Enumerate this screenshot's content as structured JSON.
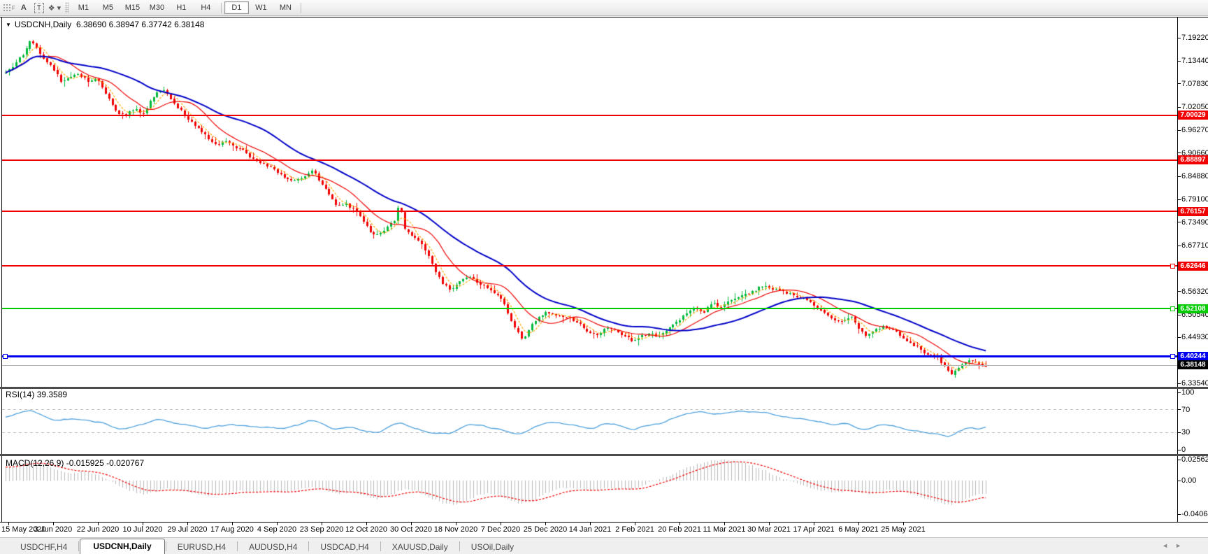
{
  "colors": {
    "bull": "#00b93c",
    "bear": "#f20000",
    "ma_fast": "#ffaa00",
    "ma_mid": "#f00000",
    "ma_slow": "#0000c8",
    "rsi_line": "#4da0dc",
    "macd_hist": "#b8b8b8",
    "macd_signal": "#f00000",
    "level_red": "#f00000",
    "level_green": "#00cc00",
    "level_blue": "#0000f0",
    "current_line": "#b4b4b4",
    "current_badge": "#000000"
  },
  "icons": {
    "grip_f": "F",
    "font": "A",
    "label_box": "T",
    "shapes": "❖",
    "caret_down": "▾",
    "title_caret": "▼",
    "tab_prev": "◄",
    "tab_next": "►"
  },
  "toolbar": {
    "timeframes": [
      {
        "label": "M1"
      },
      {
        "label": "M5"
      },
      {
        "label": "M15"
      },
      {
        "label": "M30"
      },
      {
        "label": "H1"
      },
      {
        "label": "H4"
      },
      {
        "label": "D1",
        "active": true
      },
      {
        "label": "W1"
      },
      {
        "label": "MN"
      }
    ]
  },
  "chart_window": {
    "title": "USDCNH,Daily",
    "ohlc": "6.38690 6.38947 6.37742 6.38148"
  },
  "price_axis": {
    "ticks": [
      {
        "label": "7.19220",
        "value": 7.1922
      },
      {
        "label": "7.13440",
        "value": 7.1344
      },
      {
        "label": "7.07830",
        "value": 7.0783
      },
      {
        "label": "7.02050",
        "value": 7.0205
      },
      {
        "label": "6.96270",
        "value": 6.9627
      },
      {
        "label": "6.90660",
        "value": 6.9066
      },
      {
        "label": "6.84880",
        "value": 6.8488
      },
      {
        "label": "6.79100",
        "value": 6.791
      },
      {
        "label": "6.73490",
        "value": 6.7349
      },
      {
        "label": "6.67710",
        "value": 6.6771
      },
      {
        "label": "6.62100",
        "value": 6.621
      },
      {
        "label": "6.56320",
        "value": 6.5632
      },
      {
        "label": "6.50540",
        "value": 6.5054
      },
      {
        "label": "6.44930",
        "value": 6.4493
      },
      {
        "label": "6.33540",
        "value": 6.3354
      }
    ]
  },
  "levels": [
    {
      "label": "7.00029",
      "value": 7.00029,
      "color": "#f00000",
      "thickness": 2,
      "handles": []
    },
    {
      "label": "6.88897",
      "value": 6.88897,
      "color": "#f00000",
      "thickness": 2,
      "handles": []
    },
    {
      "label": "6.76157",
      "value": 6.76157,
      "color": "#f00000",
      "thickness": 2,
      "handles": []
    },
    {
      "label": "6.62646",
      "value": 6.62646,
      "color": "#f00000",
      "thickness": 2,
      "handles": [
        "right"
      ]
    },
    {
      "label": "6.52108",
      "value": 6.52108,
      "color": "#00cc00",
      "thickness": 2,
      "handles": [
        "right"
      ]
    },
    {
      "label": "6.40244",
      "value": 6.40244,
      "color": "#0000f0",
      "thickness": 3,
      "handles": [
        "left",
        "right"
      ]
    }
  ],
  "current_price": {
    "label": "6.38148",
    "value": 6.38148
  },
  "rsi": {
    "label": "RSI(14)",
    "value": "39.3589",
    "ticks": [
      {
        "label": "100",
        "value": 100,
        "dashed": false
      },
      {
        "label": "70",
        "value": 70,
        "dashed": true
      },
      {
        "label": "30",
        "value": 30,
        "dashed": true
      },
      {
        "label": "0",
        "value": 0,
        "dashed": false
      }
    ]
  },
  "macd": {
    "label": "MACD(12,26,9)",
    "values": "-0.015925 -0.020767",
    "ticks": [
      {
        "label": "0.025623",
        "value": 0.025623
      },
      {
        "label": "0.00",
        "value": 0
      },
      {
        "label": "-0.040687",
        "value": -0.040687
      }
    ]
  },
  "date_axis": {
    "labels": [
      "15 May 2020",
      "3 Jun 2020",
      "22 Jun 2020",
      "10 Jul 2020",
      "29 Jul 2020",
      "17 Aug 2020",
      "4 Sep 2020",
      "23 Sep 2020",
      "12 Oct 2020",
      "30 Oct 2020",
      "18 Nov 2020",
      "7 Dec 2020",
      "25 Dec 2020",
      "14 Jan 2021",
      "2 Feb 2021",
      "20 Feb 2021",
      "11 Mar 2021",
      "30 Mar 2021",
      "17 Apr 2021",
      "6 May 2021",
      "25 May 2021"
    ]
  },
  "tabs": [
    {
      "label": "USDCHF,H4"
    },
    {
      "label": "USDCNH,Daily",
      "active": true
    },
    {
      "label": "EURUSD,H4"
    },
    {
      "label": "AUDUSD,H4"
    },
    {
      "label": "USDCAD,H4"
    },
    {
      "label": "XAUUSD,Daily"
    },
    {
      "label": "USOil,Daily"
    }
  ],
  "chart_data": {
    "type": "candlestick",
    "symbol": "USDCNH",
    "timeframe": "Daily",
    "open": 6.3869,
    "high": 6.38947,
    "low": 6.37742,
    "close": 6.38148,
    "bars": {
      "count": 286,
      "first_x": 8,
      "step": 4.92
    },
    "panes": {
      "main": {
        "ylim": [
          6.327,
          7.244
        ]
      },
      "rsi": {
        "ylim": [
          -7.3,
          106.1
        ],
        "last_value": 39.3589
      },
      "macd": {
        "ylim": [
          -0.0496,
          0.0299
        ],
        "last_macd": -0.015925,
        "last_signal": -0.020767
      }
    },
    "seed": 42,
    "price_anchors": [
      [
        8,
        7.105
      ],
      [
        20,
        7.125
      ],
      [
        34,
        7.155
      ],
      [
        44,
        7.19
      ],
      [
        54,
        7.16
      ],
      [
        70,
        7.128
      ],
      [
        88,
        7.082
      ],
      [
        100,
        7.096
      ],
      [
        112,
        7.102
      ],
      [
        126,
        7.086
      ],
      [
        140,
        7.09
      ],
      [
        152,
        7.05
      ],
      [
        165,
        7.012
      ],
      [
        178,
        7.0
      ],
      [
        192,
        7.016
      ],
      [
        205,
        7.002
      ],
      [
        218,
        7.044
      ],
      [
        232,
        7.066
      ],
      [
        245,
        7.04
      ],
      [
        258,
        7.012
      ],
      [
        270,
        6.99
      ],
      [
        285,
        6.966
      ],
      [
        298,
        6.94
      ],
      [
        310,
        6.924
      ],
      [
        322,
        6.936
      ],
      [
        335,
        6.92
      ],
      [
        348,
        6.914
      ],
      [
        360,
        6.894
      ],
      [
        372,
        6.88
      ],
      [
        385,
        6.874
      ],
      [
        398,
        6.856
      ],
      [
        410,
        6.844
      ],
      [
        422,
        6.835
      ],
      [
        435,
        6.85
      ],
      [
        448,
        6.862
      ],
      [
        460,
        6.83
      ],
      [
        472,
        6.8
      ],
      [
        482,
        6.776
      ],
      [
        495,
        6.78
      ],
      [
        508,
        6.764
      ],
      [
        520,
        6.735
      ],
      [
        532,
        6.706
      ],
      [
        545,
        6.706
      ],
      [
        556,
        6.728
      ],
      [
        565,
        6.74
      ],
      [
        571,
        6.785
      ],
      [
        578,
        6.716
      ],
      [
        590,
        6.7
      ],
      [
        602,
        6.684
      ],
      [
        612,
        6.654
      ],
      [
        622,
        6.614
      ],
      [
        632,
        6.584
      ],
      [
        645,
        6.566
      ],
      [
        658,
        6.59
      ],
      [
        670,
        6.604
      ],
      [
        682,
        6.586
      ],
      [
        695,
        6.576
      ],
      [
        708,
        6.556
      ],
      [
        718,
        6.545
      ],
      [
        728,
        6.5
      ],
      [
        738,
        6.468
      ],
      [
        748,
        6.443
      ],
      [
        758,
        6.474
      ],
      [
        768,
        6.498
      ],
      [
        780,
        6.51
      ],
      [
        792,
        6.504
      ],
      [
        805,
        6.5
      ],
      [
        818,
        6.494
      ],
      [
        830,
        6.48
      ],
      [
        842,
        6.462
      ],
      [
        855,
        6.454
      ],
      [
        868,
        6.474
      ],
      [
        880,
        6.468
      ],
      [
        892,
        6.455
      ],
      [
        905,
        6.44
      ],
      [
        918,
        6.452
      ],
      [
        930,
        6.458
      ],
      [
        942,
        6.452
      ],
      [
        955,
        6.468
      ],
      [
        968,
        6.488
      ],
      [
        980,
        6.508
      ],
      [
        992,
        6.524
      ],
      [
        1005,
        6.51
      ],
      [
        1018,
        6.538
      ],
      [
        1030,
        6.524
      ],
      [
        1042,
        6.54
      ],
      [
        1055,
        6.55
      ],
      [
        1068,
        6.556
      ],
      [
        1080,
        6.566
      ],
      [
        1092,
        6.578
      ],
      [
        1105,
        6.57
      ],
      [
        1118,
        6.564
      ],
      [
        1130,
        6.556
      ],
      [
        1142,
        6.548
      ],
      [
        1155,
        6.542
      ],
      [
        1168,
        6.524
      ],
      [
        1180,
        6.508
      ],
      [
        1192,
        6.495
      ],
      [
        1205,
        6.49
      ],
      [
        1218,
        6.5
      ],
      [
        1228,
        6.47
      ],
      [
        1240,
        6.452
      ],
      [
        1252,
        6.468
      ],
      [
        1264,
        6.478
      ],
      [
        1276,
        6.468
      ],
      [
        1288,
        6.455
      ],
      [
        1300,
        6.436
      ],
      [
        1312,
        6.425
      ],
      [
        1322,
        6.41
      ],
      [
        1332,
        6.405
      ],
      [
        1342,
        6.4
      ],
      [
        1352,
        6.374
      ],
      [
        1360,
        6.358
      ],
      [
        1368,
        6.37
      ],
      [
        1378,
        6.388
      ],
      [
        1388,
        6.392
      ],
      [
        1398,
        6.384
      ],
      [
        1408,
        6.3815
      ]
    ],
    "rsi_anchors": [
      [
        8,
        58
      ],
      [
        30,
        65
      ],
      [
        44,
        72
      ],
      [
        60,
        60
      ],
      [
        80,
        50
      ],
      [
        100,
        54
      ],
      [
        120,
        52
      ],
      [
        140,
        50
      ],
      [
        160,
        40
      ],
      [
        178,
        36
      ],
      [
        195,
        42
      ],
      [
        218,
        50
      ],
      [
        232,
        54
      ],
      [
        250,
        46
      ],
      [
        270,
        42
      ],
      [
        290,
        38
      ],
      [
        310,
        40
      ],
      [
        330,
        44
      ],
      [
        350,
        42
      ],
      [
        370,
        40
      ],
      [
        390,
        38
      ],
      [
        410,
        37
      ],
      [
        430,
        44
      ],
      [
        448,
        52
      ],
      [
        465,
        42
      ],
      [
        482,
        35
      ],
      [
        500,
        40
      ],
      [
        520,
        33
      ],
      [
        540,
        30
      ],
      [
        560,
        44
      ],
      [
        575,
        48
      ],
      [
        592,
        38
      ],
      [
        610,
        32
      ],
      [
        625,
        28
      ],
      [
        645,
        27
      ],
      [
        660,
        40
      ],
      [
        675,
        45
      ],
      [
        690,
        42
      ],
      [
        705,
        38
      ],
      [
        720,
        34
      ],
      [
        735,
        28
      ],
      [
        750,
        27
      ],
      [
        765,
        40
      ],
      [
        780,
        48
      ],
      [
        795,
        47
      ],
      [
        812,
        44
      ],
      [
        830,
        40
      ],
      [
        845,
        36
      ],
      [
        860,
        44
      ],
      [
        875,
        46
      ],
      [
        890,
        42
      ],
      [
        905,
        35
      ],
      [
        920,
        42
      ],
      [
        935,
        44
      ],
      [
        950,
        48
      ],
      [
        965,
        56
      ],
      [
        980,
        62
      ],
      [
        1000,
        68
      ],
      [
        1015,
        64
      ],
      [
        1030,
        62
      ],
      [
        1045,
        64
      ],
      [
        1060,
        67
      ],
      [
        1075,
        65
      ],
      [
        1090,
        66
      ],
      [
        1105,
        62
      ],
      [
        1120,
        58
      ],
      [
        1135,
        55
      ],
      [
        1150,
        54
      ],
      [
        1165,
        50
      ],
      [
        1180,
        46
      ],
      [
        1195,
        44
      ],
      [
        1210,
        46
      ],
      [
        1228,
        38
      ],
      [
        1240,
        33
      ],
      [
        1255,
        42
      ],
      [
        1270,
        44
      ],
      [
        1285,
        40
      ],
      [
        1300,
        34
      ],
      [
        1315,
        32
      ],
      [
        1330,
        30
      ],
      [
        1345,
        25
      ],
      [
        1358,
        22
      ],
      [
        1370,
        30
      ],
      [
        1380,
        37
      ],
      [
        1390,
        40
      ],
      [
        1400,
        37
      ],
      [
        1408,
        39.36
      ]
    ],
    "macd_anchors": [
      [
        8,
        0.016
      ],
      [
        25,
        0.02
      ],
      [
        45,
        0.0235
      ],
      [
        60,
        0.021
      ],
      [
        80,
        0.013
      ],
      [
        100,
        0.009
      ],
      [
        120,
        0.011
      ],
      [
        140,
        0.007
      ],
      [
        158,
        0.0
      ],
      [
        172,
        -0.007
      ],
      [
        188,
        -0.013
      ],
      [
        205,
        -0.017
      ],
      [
        222,
        -0.013
      ],
      [
        240,
        -0.01
      ],
      [
        258,
        -0.012
      ],
      [
        280,
        -0.016
      ],
      [
        300,
        -0.018
      ],
      [
        322,
        -0.015
      ],
      [
        345,
        -0.012
      ],
      [
        365,
        -0.014
      ],
      [
        385,
        -0.012
      ],
      [
        405,
        -0.014
      ],
      [
        425,
        -0.011
      ],
      [
        445,
        -0.007
      ],
      [
        465,
        -0.011
      ],
      [
        482,
        -0.016
      ],
      [
        500,
        -0.014
      ],
      [
        520,
        -0.018
      ],
      [
        540,
        -0.023
      ],
      [
        560,
        -0.017
      ],
      [
        578,
        -0.01
      ],
      [
        598,
        -0.013
      ],
      [
        615,
        -0.021
      ],
      [
        632,
        -0.027
      ],
      [
        648,
        -0.03
      ],
      [
        665,
        -0.025
      ],
      [
        682,
        -0.018
      ],
      [
        700,
        -0.015
      ],
      [
        715,
        -0.018
      ],
      [
        730,
        -0.024
      ],
      [
        745,
        -0.028
      ],
      [
        762,
        -0.024
      ],
      [
        778,
        -0.016
      ],
      [
        795,
        -0.011
      ],
      [
        812,
        -0.008
      ],
      [
        830,
        -0.01
      ],
      [
        848,
        -0.012
      ],
      [
        865,
        -0.01
      ],
      [
        882,
        -0.009
      ],
      [
        900,
        -0.011
      ],
      [
        915,
        -0.008
      ],
      [
        930,
        -0.002
      ],
      [
        945,
        0.003
      ],
      [
        960,
        0.008
      ],
      [
        975,
        0.013
      ],
      [
        990,
        0.018
      ],
      [
        1005,
        0.022
      ],
      [
        1020,
        0.0245
      ],
      [
        1035,
        0.0255
      ],
      [
        1050,
        0.024
      ],
      [
        1065,
        0.021
      ],
      [
        1080,
        0.017
      ],
      [
        1095,
        0.012
      ],
      [
        1110,
        0.006
      ],
      [
        1125,
        0.001
      ],
      [
        1140,
        -0.004
      ],
      [
        1155,
        -0.008
      ],
      [
        1170,
        -0.011
      ],
      [
        1185,
        -0.013
      ],
      [
        1200,
        -0.014
      ],
      [
        1215,
        -0.013
      ],
      [
        1230,
        -0.015
      ],
      [
        1245,
        -0.016
      ],
      [
        1260,
        -0.013
      ],
      [
        1275,
        -0.011
      ],
      [
        1290,
        -0.013
      ],
      [
        1305,
        -0.017
      ],
      [
        1320,
        -0.021
      ],
      [
        1335,
        -0.025
      ],
      [
        1348,
        -0.028
      ],
      [
        1360,
        -0.03
      ],
      [
        1372,
        -0.026
      ],
      [
        1385,
        -0.021
      ],
      [
        1398,
        -0.017
      ],
      [
        1408,
        -0.0159
      ]
    ]
  }
}
